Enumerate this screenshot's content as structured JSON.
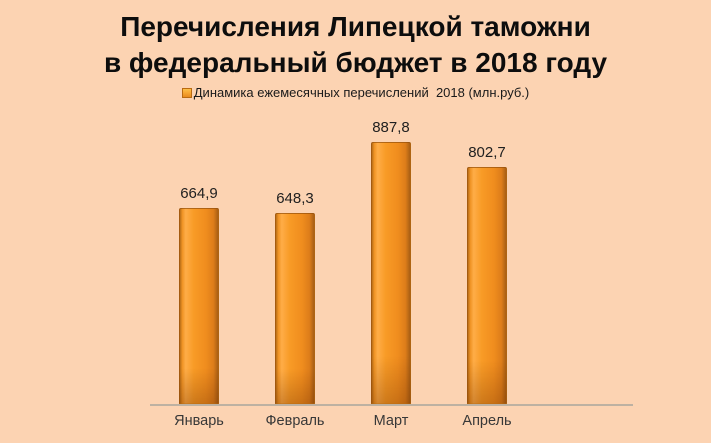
{
  "page": {
    "background_color": "#fcd3b2"
  },
  "title": {
    "line1": "Перечисления Липецкой таможни",
    "line2": "в федеральный бюджет в 2018 году"
  },
  "legend": {
    "label": "Динамика ежемесячных перечислений  2018 (млн.руб.)",
    "marker_color": "#f6931f"
  },
  "chart_data": {
    "type": "bar",
    "title": "Перечисления Липецкой таможни в федеральный бюджет в 2018 году",
    "series_name": "Динамика ежемесячных перечислений 2018 (млн.руб.)",
    "categories": [
      "Январь",
      "Февраль",
      "Март",
      "Апрель"
    ],
    "values": [
      664.9,
      648.3,
      887.8,
      802.7
    ],
    "value_labels": [
      "664,9",
      "648,3",
      "887,8",
      "802,7"
    ],
    "xlabel": "",
    "ylabel": "",
    "ylim": [
      0,
      900
    ],
    "grid": false,
    "legend_position": "top",
    "bar_color": "#f6931f",
    "background_color": "#fcd3b2"
  }
}
